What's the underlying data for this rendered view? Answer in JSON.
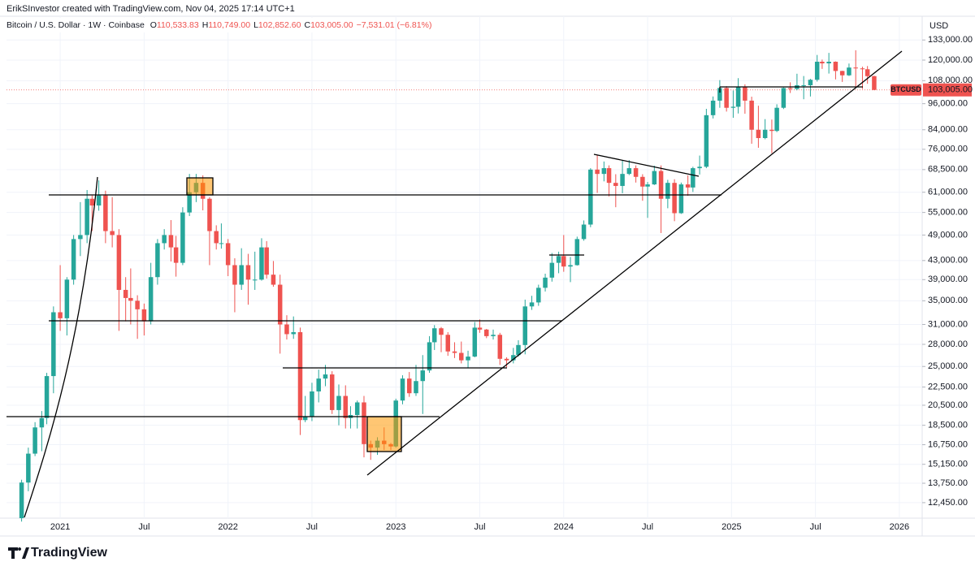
{
  "header": {
    "author_line": "ErikSInvestor created with TradingView.com, Nov 04, 2025 17:14 UTC+1",
    "symbol": "Bitcoin / U.S. Dollar · 1W · Coinbase",
    "ohlc": [
      {
        "label": "O",
        "value": "110,533.83"
      },
      {
        "label": "H",
        "value": "110,749.00"
      },
      {
        "label": "L",
        "value": "102,852.60"
      },
      {
        "label": "C",
        "value": "103,005.00"
      }
    ],
    "change": "−7,531.01 (−6.81%)"
  },
  "logo": "TradingView",
  "chart_data": {
    "type": "candlestick",
    "currency": "USD",
    "symbol_tag": "BTCUSD",
    "last_price": {
      "value": 103005,
      "label": "103,005.00"
    },
    "up_color": "#26a69a",
    "down_color": "#ef5350",
    "log_scale": true,
    "grid": true,
    "xlim": [
      2020.68,
      2026.136
    ],
    "ylim": [
      11500,
      150200
    ],
    "xticks": [
      {
        "value": 2021,
        "label": "2021"
      },
      {
        "value": 2021.5,
        "label": "Jul"
      },
      {
        "value": 2022,
        "label": "2022"
      },
      {
        "value": 2022.5,
        "label": "Jul"
      },
      {
        "value": 2023,
        "label": "2023"
      },
      {
        "value": 2023.5,
        "label": "Jul"
      },
      {
        "value": 2024,
        "label": "2024"
      },
      {
        "value": 2024.5,
        "label": "Jul"
      },
      {
        "value": 2025,
        "label": "2025"
      },
      {
        "value": 2025.5,
        "label": "Jul"
      },
      {
        "value": 2026,
        "label": "2026"
      }
    ],
    "yticks": [
      {
        "value": 12450,
        "label": "12,450.00"
      },
      {
        "value": 13750,
        "label": "13,750.00"
      },
      {
        "value": 15150,
        "label": "15,150.00"
      },
      {
        "value": 16750,
        "label": "16,750.00"
      },
      {
        "value": 18500,
        "label": "18,500.00"
      },
      {
        "value": 20500,
        "label": "20,500.00"
      },
      {
        "value": 22500,
        "label": "22,500.00"
      },
      {
        "value": 25000,
        "label": "25,000.00"
      },
      {
        "value": 28000,
        "label": "28,000.00"
      },
      {
        "value": 31000,
        "label": "31,000.00"
      },
      {
        "value": 35000,
        "label": "35,000.00"
      },
      {
        "value": 39000,
        "label": "39,000.00"
      },
      {
        "value": 43000,
        "label": "43,000.00"
      },
      {
        "value": 49000,
        "label": "49,000.00"
      },
      {
        "value": 55000,
        "label": "55,000.00"
      },
      {
        "value": 61000,
        "label": "61,000.00"
      },
      {
        "value": 68500,
        "label": "68,500.00"
      },
      {
        "value": 76000,
        "label": "76,000.00"
      },
      {
        "value": 84000,
        "label": "84,000.00"
      },
      {
        "value": 96000,
        "label": "96,000.00"
      },
      {
        "value": 108000,
        "label": "108,000.00"
      },
      {
        "value": 120000,
        "label": "120,000.00"
      },
      {
        "value": 133000,
        "label": "133,000.00"
      }
    ],
    "x": [
      2020.77,
      2020.81,
      2020.85,
      2020.89,
      2020.92,
      2020.96,
      2021.0,
      2021.04,
      2021.08,
      2021.12,
      2021.16,
      2021.19,
      2021.23,
      2021.27,
      2021.31,
      2021.35,
      2021.39,
      2021.42,
      2021.46,
      2021.5,
      2021.54,
      2021.58,
      2021.62,
      2021.66,
      2021.69,
      2021.73,
      2021.77,
      2021.81,
      2021.85,
      2021.89,
      2021.93,
      2021.96,
      2022.0,
      2022.04,
      2022.08,
      2022.12,
      2022.16,
      2022.2,
      2022.23,
      2022.27,
      2022.31,
      2022.35,
      2022.39,
      2022.43,
      2022.46,
      2022.5,
      2022.54,
      2022.58,
      2022.62,
      2022.66,
      2022.7,
      2022.73,
      2022.77,
      2022.81,
      2022.85,
      2022.89,
      2022.93,
      2022.97,
      2023.0,
      2023.04,
      2023.08,
      2023.12,
      2023.16,
      2023.2,
      2023.23,
      2023.27,
      2023.31,
      2023.35,
      2023.39,
      2023.43,
      2023.47,
      2023.5,
      2023.54,
      2023.58,
      2023.62,
      2023.66,
      2023.7,
      2023.73,
      2023.77,
      2023.81,
      2023.85,
      2023.89,
      2023.93,
      2023.97,
      2024.0,
      2024.04,
      2024.08,
      2024.12,
      2024.16,
      2024.2,
      2024.24,
      2024.27,
      2024.31,
      2024.35,
      2024.39,
      2024.43,
      2024.47,
      2024.5,
      2024.54,
      2024.58,
      2024.62,
      2024.66,
      2024.7,
      2024.74,
      2024.77,
      2024.81,
      2024.85,
      2024.89,
      2024.93,
      2024.97,
      2025.01,
      2025.04,
      2025.08,
      2025.12,
      2025.16,
      2025.2,
      2025.24,
      2025.27,
      2025.31,
      2025.35,
      2025.39,
      2025.43,
      2025.47,
      2025.51,
      2025.54,
      2025.58,
      2025.62,
      2025.66,
      2025.7,
      2025.74,
      2025.78,
      2025.81,
      2025.85
    ],
    "candles": [
      [
        11500,
        14000,
        11300,
        13800
      ],
      [
        13800,
        16500,
        13200,
        16000
      ],
      [
        16000,
        18800,
        15800,
        18300
      ],
      [
        18300,
        19900,
        16200,
        19200
      ],
      [
        19200,
        24200,
        18600,
        23800
      ],
      [
        23800,
        34000,
        21800,
        33000
      ],
      [
        33000,
        42000,
        30000,
        32000
      ],
      [
        32000,
        39500,
        29300,
        39000
      ],
      [
        39000,
        49000,
        38000,
        48000
      ],
      [
        48000,
        58000,
        44000,
        49000
      ],
      [
        49000,
        61700,
        47000,
        59000
      ],
      [
        59000,
        60000,
        50000,
        57000
      ],
      [
        57000,
        64800,
        55500,
        60000
      ],
      [
        60000,
        61500,
        47000,
        50000
      ],
      [
        50000,
        59500,
        46000,
        49000
      ],
      [
        49000,
        50500,
        30000,
        37000
      ],
      [
        37000,
        39500,
        31500,
        35500
      ],
      [
        35500,
        41300,
        31000,
        35000
      ],
      [
        35000,
        36000,
        28800,
        33500
      ],
      [
        33500,
        34500,
        29300,
        31500
      ],
      [
        31500,
        42500,
        31000,
        39500
      ],
      [
        39500,
        48000,
        38000,
        47000
      ],
      [
        47000,
        50500,
        45500,
        49000
      ],
      [
        49000,
        52900,
        42800,
        46000
      ],
      [
        46000,
        48800,
        39600,
        42500
      ],
      [
        42500,
        56500,
        42000,
        55000
      ],
      [
        55000,
        67000,
        54000,
        61000
      ],
      [
        61000,
        67000,
        58000,
        64000
      ],
      [
        64000,
        66500,
        55600,
        59000
      ],
      [
        59000,
        59500,
        42000,
        50000
      ],
      [
        50000,
        51500,
        45500,
        47000
      ],
      [
        47000,
        52000,
        45700,
        47000
      ],
      [
        47000,
        48000,
        39700,
        42000
      ],
      [
        42000,
        43500,
        33000,
        38000
      ],
      [
        38000,
        45800,
        37000,
        42000
      ],
      [
        42000,
        44500,
        34300,
        39000
      ],
      [
        39000,
        45000,
        37000,
        39000
      ],
      [
        39000,
        48200,
        38800,
        46000
      ],
      [
        46000,
        47500,
        39200,
        40000
      ],
      [
        40000,
        42900,
        37600,
        38000
      ],
      [
        38000,
        40000,
        26700,
        31000
      ],
      [
        31000,
        32500,
        28700,
        29500
      ],
      [
        29500,
        32300,
        28800,
        29800
      ],
      [
        29800,
        30500,
        17600,
        19000
      ],
      [
        19000,
        21500,
        18800,
        19300
      ],
      [
        19300,
        23000,
        18900,
        22000
      ],
      [
        22000,
        24600,
        20800,
        23500
      ],
      [
        23500,
        25200,
        22600,
        24000
      ],
      [
        24000,
        24400,
        19600,
        20000
      ],
      [
        20000,
        22800,
        18500,
        21500
      ],
      [
        21500,
        22700,
        18200,
        19200
      ],
      [
        19200,
        20400,
        18200,
        19500
      ],
      [
        19500,
        21000,
        18200,
        20800
      ],
      [
        20800,
        21500,
        15700,
        16800
      ],
      [
        16800,
        17100,
        15500,
        16500
      ],
      [
        16500,
        17400,
        15900,
        17100
      ],
      [
        17100,
        18300,
        16300,
        16800
      ],
      [
        16800,
        16900,
        16300,
        16600
      ],
      [
        16600,
        21200,
        16500,
        21000
      ],
      [
        21000,
        23900,
        20600,
        23500
      ],
      [
        23500,
        24300,
        21400,
        21800
      ],
      [
        21800,
        25200,
        21500,
        23200
      ],
      [
        23200,
        26500,
        19600,
        24500
      ],
      [
        24500,
        29200,
        24200,
        28300
      ],
      [
        28300,
        30900,
        27200,
        30400
      ],
      [
        30400,
        30600,
        26900,
        29400
      ],
      [
        29400,
        29800,
        26400,
        27000
      ],
      [
        27000,
        28300,
        26100,
        26800
      ],
      [
        26800,
        28400,
        25400,
        25800
      ],
      [
        25800,
        27100,
        24800,
        26300
      ],
      [
        26300,
        31400,
        26200,
        30500
      ],
      [
        30500,
        31800,
        29700,
        30200
      ],
      [
        30200,
        30300,
        28900,
        29200
      ],
      [
        29200,
        30200,
        28700,
        29400
      ],
      [
        29400,
        29700,
        25200,
        26000
      ],
      [
        26000,
        26200,
        24900,
        25800
      ],
      [
        25800,
        27500,
        25400,
        26500
      ],
      [
        26500,
        28600,
        26300,
        27900
      ],
      [
        27900,
        35200,
        26600,
        34000
      ],
      [
        34000,
        35900,
        33400,
        34700
      ],
      [
        34700,
        38000,
        34100,
        37400
      ],
      [
        37400,
        40200,
        36700,
        39400
      ],
      [
        39400,
        44700,
        38600,
        42500
      ],
      [
        42500,
        45000,
        40300,
        44000
      ],
      [
        44000,
        49000,
        40600,
        41700
      ],
      [
        41700,
        43800,
        38500,
        42000
      ],
      [
        42000,
        48600,
        41900,
        48000
      ],
      [
        48000,
        52800,
        47600,
        51700
      ],
      [
        51700,
        69000,
        51000,
        68500
      ],
      [
        68500,
        73800,
        60800,
        67000
      ],
      [
        67000,
        71400,
        64500,
        69000
      ],
      [
        69000,
        70000,
        59700,
        64000
      ],
      [
        64000,
        66900,
        56500,
        63000
      ],
      [
        63000,
        71900,
        60700,
        67000
      ],
      [
        67000,
        71900,
        66600,
        69000
      ],
      [
        69000,
        70000,
        64100,
        66000
      ],
      [
        66000,
        66900,
        58400,
        62800
      ],
      [
        62800,
        64300,
        53500,
        63500
      ],
      [
        63500,
        69900,
        63300,
        68000
      ],
      [
        68000,
        70000,
        49500,
        59000
      ],
      [
        59000,
        65000,
        56200,
        64000
      ],
      [
        64000,
        65200,
        52600,
        54800
      ],
      [
        54800,
        64100,
        54600,
        63500
      ],
      [
        63500,
        66500,
        59900,
        62500
      ],
      [
        62500,
        69500,
        61100,
        69000
      ],
      [
        69000,
        73600,
        66800,
        69500
      ],
      [
        69500,
        93500,
        69000,
        90500
      ],
      [
        90500,
        99600,
        89000,
        97500
      ],
      [
        97500,
        108300,
        94000,
        104000
      ],
      [
        104000,
        105000,
        92200,
        94000
      ],
      [
        94000,
        102700,
        89300,
        94500
      ],
      [
        94500,
        109400,
        91300,
        104500
      ],
      [
        104500,
        106000,
        91200,
        97500
      ],
      [
        97500,
        99500,
        78200,
        84000
      ],
      [
        84000,
        95000,
        76600,
        80500
      ],
      [
        80500,
        88700,
        80000,
        84000
      ],
      [
        84000,
        88500,
        74500,
        83500
      ],
      [
        83500,
        95700,
        83000,
        94000
      ],
      [
        94000,
        104300,
        93400,
        104000
      ],
      [
        104000,
        107100,
        101400,
        103500
      ],
      [
        103500,
        111900,
        102800,
        105500
      ],
      [
        105500,
        110600,
        98200,
        105500
      ],
      [
        105500,
        109000,
        99600,
        108500
      ],
      [
        108500,
        123200,
        107500,
        119000
      ],
      [
        119000,
        120300,
        114700,
        118000
      ],
      [
        118000,
        124500,
        112000,
        119000
      ],
      [
        119000,
        119200,
        108700,
        113500
      ],
      [
        113500,
        113600,
        107300,
        111000
      ],
      [
        111000,
        117900,
        110600,
        115500
      ],
      [
        115500,
        126200,
        104800,
        115000
      ],
      [
        115000,
        116000,
        103500,
        114500
      ],
      [
        114500,
        116400,
        106300,
        110533.83
      ],
      [
        110533.83,
        110749,
        102852.6,
        103005
      ]
    ]
  }
}
